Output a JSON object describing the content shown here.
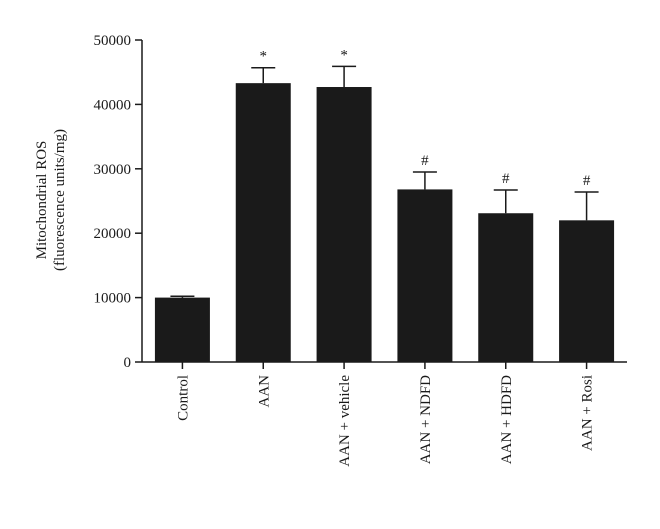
{
  "chart_data": {
    "type": "bar",
    "title": "",
    "ylabel_lines": [
      "Mitochondrial ROS",
      "(fluorescence units/mg)"
    ],
    "xlabel": "",
    "ylim": [
      0,
      50000
    ],
    "yticks": [
      0,
      10000,
      20000,
      30000,
      40000,
      50000
    ],
    "ytick_labels": [
      "0",
      "10000",
      "20000",
      "30000",
      "40000",
      "50000"
    ],
    "categories": [
      "Control",
      "AAN",
      "AAN + vehicle",
      "AAN + NDFD",
      "AAN + HDFD",
      "AAN + Rosi"
    ],
    "values": [
      10000,
      43300,
      42700,
      26800,
      23100,
      22000
    ],
    "errors": [
      200,
      2400,
      3200,
      2700,
      3600,
      4400
    ],
    "significance": [
      "",
      "*",
      "*",
      "#",
      "#",
      "#"
    ],
    "bar_color": "#1a1a1a",
    "grid": false,
    "legend": "none"
  }
}
